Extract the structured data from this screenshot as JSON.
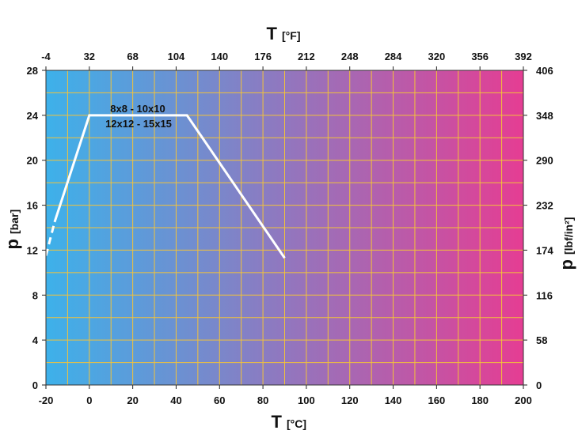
{
  "chart_data": {
    "type": "line",
    "x_bottom": {
      "symbol": "T",
      "unit": "[°C]",
      "range": [
        -20,
        200
      ],
      "ticks": [
        "-20",
        "0",
        "20",
        "40",
        "60",
        "80",
        "100",
        "120",
        "140",
        "160",
        "180",
        "200"
      ]
    },
    "x_top": {
      "symbol": "T",
      "unit": "[°F]",
      "ticks": [
        "-4",
        "32",
        "68",
        "104",
        "140",
        "176",
        "212",
        "248",
        "284",
        "320",
        "356",
        "392"
      ]
    },
    "y_left": {
      "symbol": "p",
      "unit": "[bar]",
      "range": [
        0,
        28
      ],
      "ticks": [
        "0",
        "4",
        "8",
        "12",
        "16",
        "20",
        "24",
        "28"
      ]
    },
    "y_right": {
      "symbol": "p",
      "unit": "[lbf/in²]",
      "ticks": [
        "0",
        "58",
        "116",
        "174",
        "232",
        "290",
        "348",
        "406"
      ]
    },
    "grid": true,
    "background_gradient": [
      "#3db1ea",
      "#e53d93"
    ],
    "grid_color": "#f2c23a",
    "line_color": "#ffffff",
    "series": [
      {
        "values": [
          {
            "x": -20,
            "y": 11.5
          },
          {
            "x": -16,
            "y": 14.5
          },
          {
            "x": 0,
            "y": 24
          },
          {
            "x": 45,
            "y": 24
          },
          {
            "x": 90,
            "y": 11.3
          }
        ]
      }
    ],
    "annotations": [
      "8x8 - 10x10",
      "12x12 - 15x15"
    ]
  }
}
